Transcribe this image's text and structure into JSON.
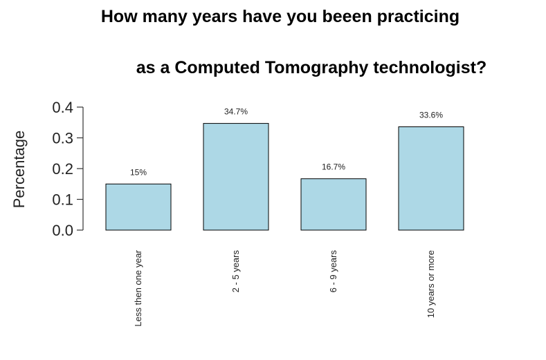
{
  "chart_data": {
    "type": "bar",
    "title_line1": "How many years have you beeen practicing",
    "title_line2": "as a Computed Tomography technologist?",
    "ylabel": "Percentage",
    "xlabel": "",
    "ylim": [
      0,
      0.4
    ],
    "yticks": [
      "0.0",
      "0.1",
      "0.2",
      "0.3",
      "0.4"
    ],
    "categories": [
      "Less then one year",
      "2 - 5 years",
      "6 - 9 years",
      "10 years or more"
    ],
    "values": [
      0.15,
      0.347,
      0.167,
      0.336
    ],
    "data_labels": [
      "15%",
      "34.7%",
      "16.7%",
      "33.6%"
    ],
    "grid": false,
    "bar_color": "#add8e6",
    "bar_edge_color": "#000000"
  }
}
